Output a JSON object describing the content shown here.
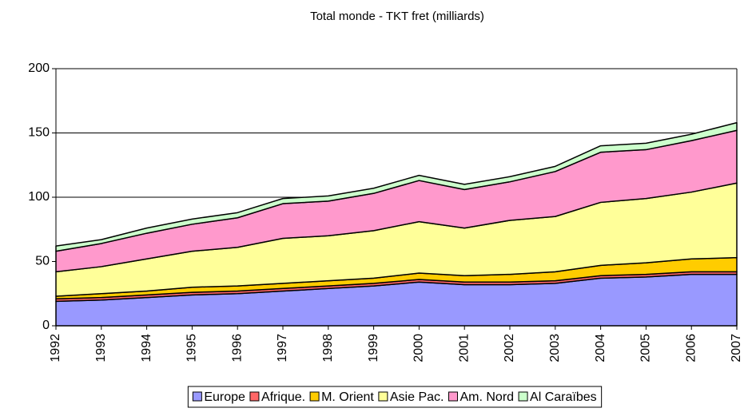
{
  "chart_data": {
    "type": "stacked_area",
    "title": "Total monde - TKT fret (milliards)",
    "categories": [
      "1992",
      "1993",
      "1994",
      "1995",
      "1996",
      "1997",
      "1998",
      "1999",
      "2000",
      "2001",
      "2002",
      "2003",
      "2004",
      "2005",
      "2006",
      "2007"
    ],
    "series": [
      {
        "name": "Europe",
        "color": "#9999ff",
        "values": [
          19,
          20,
          22,
          24,
          25,
          27,
          29,
          31,
          34,
          32,
          32,
          33,
          37,
          38,
          40,
          40
        ]
      },
      {
        "name": "Afrique.",
        "color": "#ff6666",
        "values": [
          2,
          2,
          2,
          2,
          2,
          2,
          2,
          2,
          2,
          2,
          2,
          2,
          2,
          2,
          2,
          2
        ]
      },
      {
        "name": "M. Orient",
        "color": "#ffcc00",
        "values": [
          2,
          3,
          3,
          4,
          4,
          4,
          4,
          4,
          5,
          5,
          6,
          7,
          8,
          9,
          10,
          11
        ]
      },
      {
        "name": "Asie Pac.",
        "color": "#ffff99",
        "values": [
          19,
          21,
          25,
          28,
          30,
          35,
          35,
          37,
          40,
          37,
          42,
          43,
          49,
          50,
          52,
          58
        ]
      },
      {
        "name": "Am. Nord",
        "color": "#ff99cc",
        "values": [
          16,
          18,
          20,
          21,
          23,
          27,
          27,
          29,
          32,
          30,
          30,
          35,
          39,
          38,
          40,
          41
        ]
      },
      {
        "name": "Al Caraïbes",
        "color": "#ccffcc",
        "values": [
          4,
          3,
          4,
          4,
          4,
          4,
          4,
          4,
          4,
          4,
          4,
          4,
          5,
          5,
          5,
          6
        ]
      }
    ],
    "ylim": [
      0,
      200
    ],
    "yticks": [
      0,
      50,
      100,
      150,
      200
    ],
    "grid": true,
    "legend": "bottom"
  }
}
